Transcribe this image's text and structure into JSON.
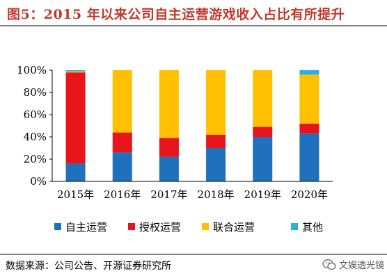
{
  "header": {
    "title": "图5：2015 年以来公司自主运营游戏收入占比有所提升"
  },
  "footer": {
    "source": "数据来源：公司公告、开源证券研究所",
    "watermark": "文娱透光镜"
  },
  "chart_data": {
    "type": "bar",
    "stacked": true,
    "categories": [
      "2015年",
      "2016年",
      "2017年",
      "2018年",
      "2019年",
      "2020年"
    ],
    "ylim": [
      0,
      100
    ],
    "yticks": [
      "0%",
      "20%",
      "40%",
      "60%",
      "80%",
      "100%"
    ],
    "legend_position": "bottom",
    "series": [
      {
        "name": "自主运营",
        "color": "#1f70bd",
        "values": [
          16,
          26,
          22,
          30,
          40,
          43
        ]
      },
      {
        "name": "授权运营",
        "color": "#e8141b",
        "values": [
          82,
          18,
          17,
          12,
          9,
          9
        ]
      },
      {
        "name": "联合运营",
        "color": "#ffc000",
        "values": [
          1,
          56,
          61,
          58,
          51,
          44
        ]
      },
      {
        "name": "其他",
        "color": "#29aee6",
        "values": [
          1,
          0,
          0,
          0,
          0,
          4
        ]
      }
    ]
  }
}
